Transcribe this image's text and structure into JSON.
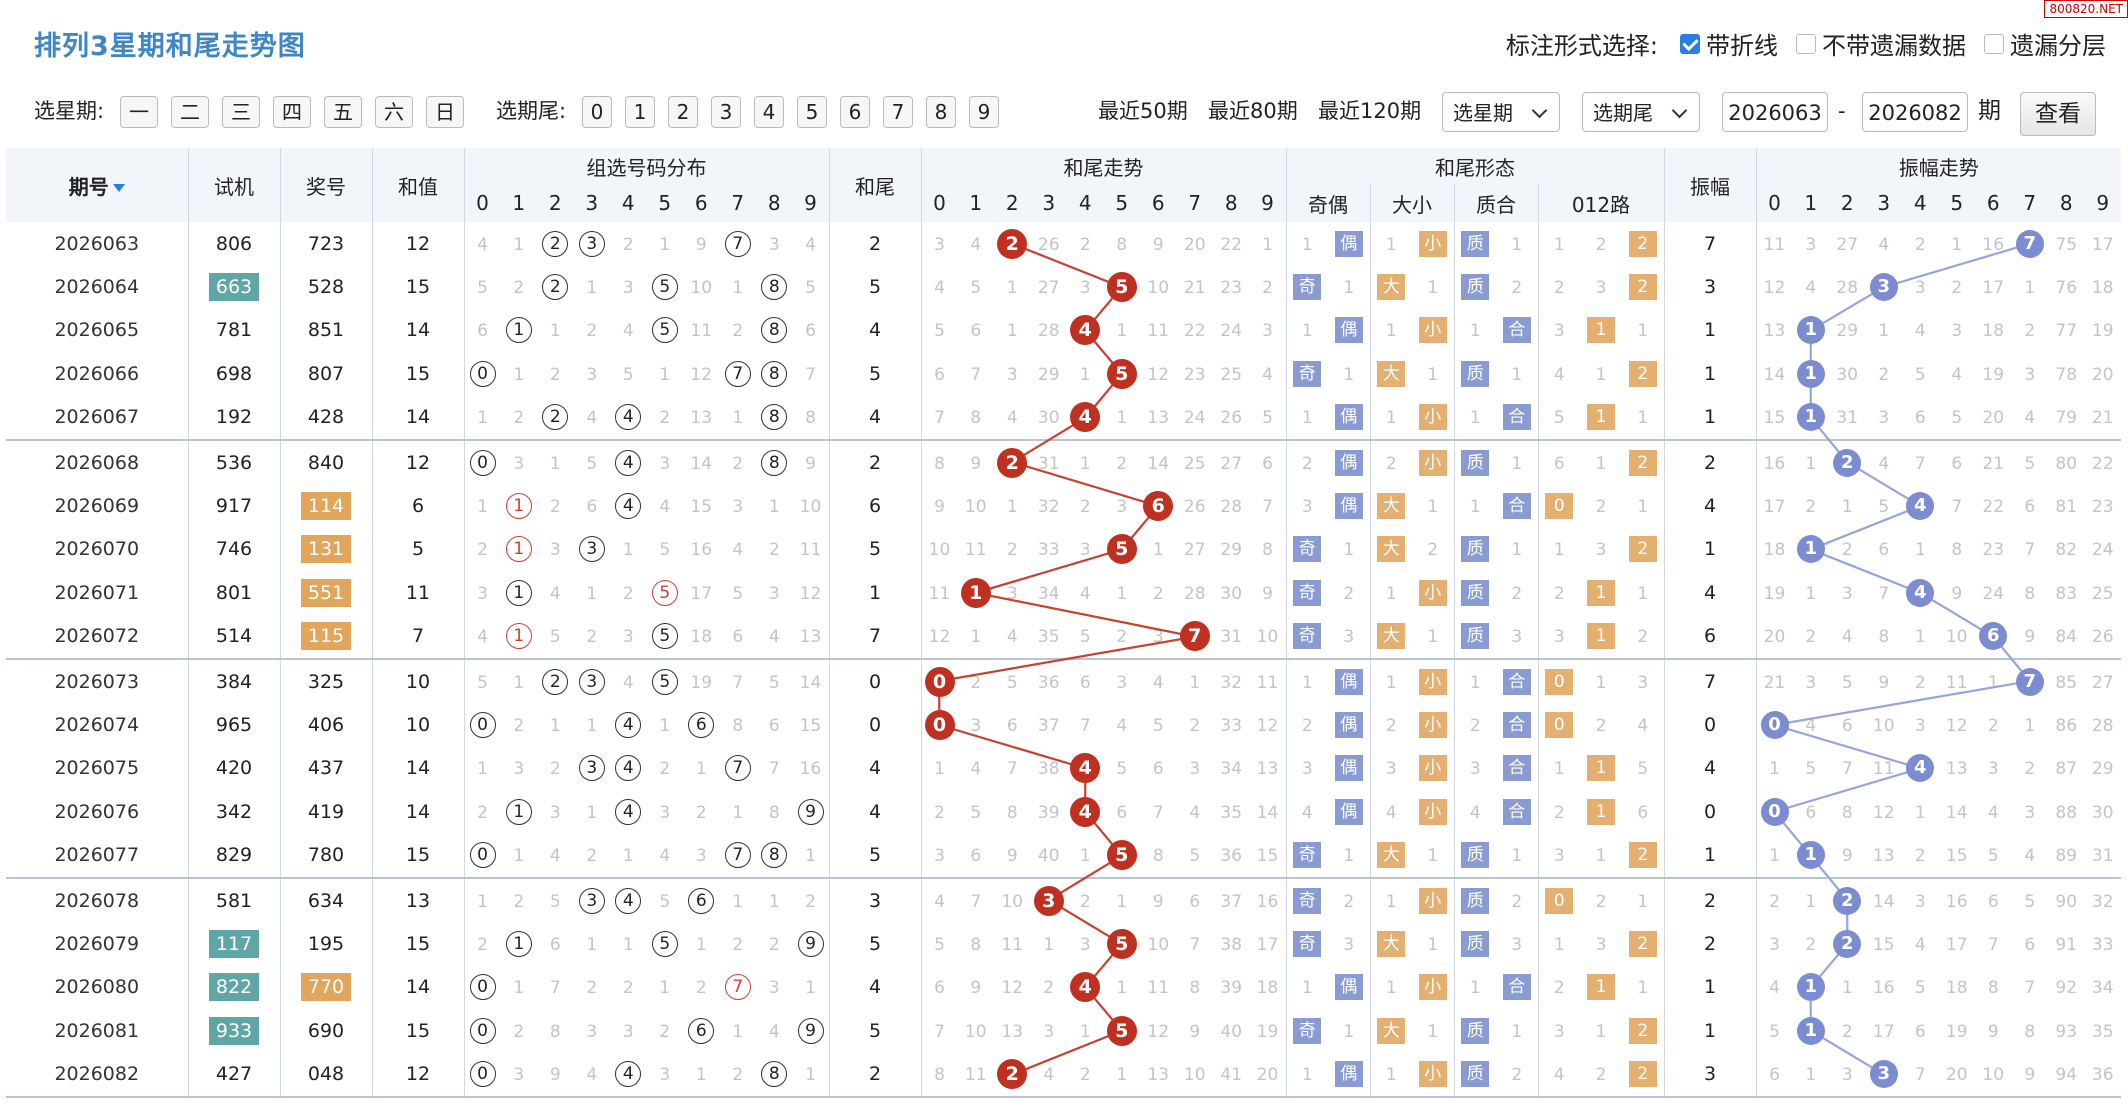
{
  "title": "排列3星期和尾走势图",
  "badge": "800820.NET",
  "options": {
    "label": "标注形式选择:",
    "items": [
      {
        "label": "带折线",
        "checked": true
      },
      {
        "label": "不带遗漏数据",
        "checked": false
      },
      {
        "label": "遗漏分层",
        "checked": false
      }
    ]
  },
  "toolbar": {
    "week_label": "选星期:",
    "weekdays": [
      "一",
      "二",
      "三",
      "四",
      "五",
      "六",
      "日"
    ],
    "tail_label": "选期尾:",
    "tails": [
      "0",
      "1",
      "2",
      "3",
      "4",
      "5",
      "6",
      "7",
      "8",
      "9"
    ],
    "recent": [
      "最近50期",
      "最近80期",
      "最近120期"
    ],
    "select_week": "选星期",
    "select_tail": "选期尾",
    "from": "2026063",
    "dash": "-",
    "to": "2026082",
    "period": "期",
    "query": "查看"
  },
  "headers": {
    "issue": "期号",
    "test": "试机",
    "prize": "奖号",
    "sum": "和值",
    "group": "组选号码分布",
    "tail": "和尾",
    "tail_trend": "和尾走势",
    "form": "和尾形态",
    "form_sub": [
      "奇偶",
      "大小",
      "质合",
      "012路"
    ],
    "amp": "振幅",
    "amp_trend": "振幅走势",
    "digits": [
      "0",
      "1",
      "2",
      "3",
      "4",
      "5",
      "6",
      "7",
      "8",
      "9"
    ]
  },
  "rows": [
    {
      "issue": "2026063",
      "test": "806",
      "prize": "723",
      "sum": "12",
      "tail": "2",
      "amp": "7",
      "testHL": "",
      "prizeHL": "",
      "g": [
        "4",
        "1",
        "②",
        "③",
        "2",
        "1",
        "9",
        "⑦",
        "3",
        "4"
      ],
      "t": [
        "3",
        "4",
        "●",
        "26",
        "2",
        "8",
        "9",
        "20",
        "22",
        "1"
      ],
      "oe": [
        "1",
        "偶"
      ],
      "bs": [
        "1",
        "小"
      ],
      "pc": [
        "质",
        "1"
      ],
      "r": [
        "1",
        "2",
        "2"
      ],
      "rh": 2,
      "a": [
        "11",
        "3",
        "27",
        "4",
        "2",
        "1",
        "16",
        "●",
        "75",
        "17"
      ]
    },
    {
      "issue": "2026064",
      "test": "663",
      "prize": "528",
      "sum": "15",
      "tail": "5",
      "amp": "3",
      "testHL": "teal",
      "prizeHL": "",
      "g": [
        "5",
        "2",
        "②",
        "1",
        "3",
        "⑤",
        "10",
        "1",
        "⑧",
        "5"
      ],
      "t": [
        "4",
        "5",
        "1",
        "27",
        "3",
        "●",
        "10",
        "21",
        "23",
        "2"
      ],
      "oe": [
        "奇",
        "1"
      ],
      "bs": [
        "大",
        "1"
      ],
      "pc": [
        "质",
        "2"
      ],
      "r": [
        "2",
        "3",
        "2"
      ],
      "rh": 2,
      "a": [
        "12",
        "4",
        "28",
        "●",
        "3",
        "2",
        "17",
        "1",
        "76",
        "18"
      ]
    },
    {
      "issue": "2026065",
      "test": "781",
      "prize": "851",
      "sum": "14",
      "tail": "4",
      "amp": "1",
      "testHL": "",
      "prizeHL": "",
      "g": [
        "6",
        "①",
        "1",
        "2",
        "4",
        "⑤",
        "11",
        "2",
        "⑧",
        "6"
      ],
      "t": [
        "5",
        "6",
        "1",
        "28",
        "●",
        "1",
        "11",
        "22",
        "24",
        "3"
      ],
      "oe": [
        "1",
        "偶"
      ],
      "bs": [
        "1",
        "小"
      ],
      "pc": [
        "1",
        "合"
      ],
      "r": [
        "3",
        "1",
        "1"
      ],
      "rh": 1,
      "a": [
        "13",
        "●",
        "29",
        "1",
        "4",
        "3",
        "18",
        "2",
        "77",
        "19"
      ]
    },
    {
      "issue": "2026066",
      "test": "698",
      "prize": "807",
      "sum": "15",
      "tail": "5",
      "amp": "1",
      "testHL": "",
      "prizeHL": "",
      "g": [
        "⓪",
        "1",
        "2",
        "3",
        "5",
        "1",
        "12",
        "⑦",
        "⑧",
        "7"
      ],
      "t": [
        "6",
        "7",
        "3",
        "29",
        "1",
        "●",
        "12",
        "23",
        "25",
        "4"
      ],
      "oe": [
        "奇",
        "1"
      ],
      "bs": [
        "大",
        "1"
      ],
      "pc": [
        "质",
        "1"
      ],
      "r": [
        "4",
        "1",
        "2"
      ],
      "rh": 2,
      "a": [
        "14",
        "●",
        "30",
        "2",
        "5",
        "4",
        "19",
        "3",
        "78",
        "20"
      ]
    },
    {
      "issue": "2026067",
      "test": "192",
      "prize": "428",
      "sum": "14",
      "tail": "4",
      "amp": "1",
      "testHL": "",
      "prizeHL": "",
      "g": [
        "1",
        "2",
        "②",
        "4",
        "④",
        "2",
        "13",
        "1",
        "⑧",
        "8"
      ],
      "t": [
        "7",
        "8",
        "4",
        "30",
        "●",
        "1",
        "13",
        "24",
        "26",
        "5"
      ],
      "oe": [
        "1",
        "偶"
      ],
      "bs": [
        "1",
        "小"
      ],
      "pc": [
        "1",
        "合"
      ],
      "r": [
        "5",
        "1",
        "1"
      ],
      "rh": 1,
      "a": [
        "15",
        "●",
        "31",
        "3",
        "6",
        "5",
        "20",
        "4",
        "79",
        "21"
      ],
      "end": true
    },
    {
      "issue": "2026068",
      "test": "536",
      "prize": "840",
      "sum": "12",
      "tail": "2",
      "amp": "2",
      "testHL": "",
      "prizeHL": "",
      "g": [
        "⓪",
        "3",
        "1",
        "5",
        "④",
        "3",
        "14",
        "2",
        "⑧",
        "9"
      ],
      "t": [
        "8",
        "9",
        "●",
        "31",
        "1",
        "2",
        "14",
        "25",
        "27",
        "6"
      ],
      "oe": [
        "2",
        "偶"
      ],
      "bs": [
        "2",
        "小"
      ],
      "pc": [
        "质",
        "1"
      ],
      "r": [
        "6",
        "1",
        "2"
      ],
      "rh": 2,
      "a": [
        "16",
        "1",
        "●",
        "4",
        "7",
        "6",
        "21",
        "5",
        "80",
        "22"
      ]
    },
    {
      "issue": "2026069",
      "test": "917",
      "prize": "114",
      "sum": "6",
      "tail": "6",
      "amp": "4",
      "testHL": "",
      "prizeHL": "gold",
      "g": [
        "1",
        "Ⓡ1",
        "2",
        "6",
        "④",
        "4",
        "15",
        "3",
        "1",
        "10"
      ],
      "t": [
        "9",
        "10",
        "1",
        "32",
        "2",
        "3",
        "●",
        "26",
        "28",
        "7"
      ],
      "oe": [
        "3",
        "偶"
      ],
      "bs": [
        "大",
        "1"
      ],
      "pc": [
        "1",
        "合"
      ],
      "r": [
        "0",
        "2",
        "1"
      ],
      "rh": 0,
      "a": [
        "17",
        "2",
        "1",
        "5",
        "●",
        "7",
        "22",
        "6",
        "81",
        "23"
      ]
    },
    {
      "issue": "2026070",
      "test": "746",
      "prize": "131",
      "sum": "5",
      "tail": "5",
      "amp": "1",
      "testHL": "",
      "prizeHL": "gold",
      "g": [
        "2",
        "Ⓡ1",
        "3",
        "③",
        "1",
        "5",
        "16",
        "4",
        "2",
        "11"
      ],
      "t": [
        "10",
        "11",
        "2",
        "33",
        "3",
        "●",
        "1",
        "27",
        "29",
        "8"
      ],
      "oe": [
        "奇",
        "1"
      ],
      "bs": [
        "大",
        "2"
      ],
      "pc": [
        "质",
        "1"
      ],
      "r": [
        "1",
        "3",
        "2"
      ],
      "rh": 2,
      "a": [
        "18",
        "●",
        "2",
        "6",
        "1",
        "8",
        "23",
        "7",
        "82",
        "24"
      ]
    },
    {
      "issue": "2026071",
      "test": "801",
      "prize": "551",
      "sum": "11",
      "tail": "1",
      "amp": "4",
      "testHL": "",
      "prizeHL": "gold",
      "g": [
        "3",
        "①",
        "4",
        "1",
        "2",
        "Ⓡ5",
        "17",
        "5",
        "3",
        "12"
      ],
      "t": [
        "11",
        "●",
        "3",
        "34",
        "4",
        "1",
        "2",
        "28",
        "30",
        "9"
      ],
      "oe": [
        "奇",
        "2"
      ],
      "bs": [
        "1",
        "小"
      ],
      "pc": [
        "质",
        "2"
      ],
      "r": [
        "2",
        "1",
        "1"
      ],
      "rh": 1,
      "a": [
        "19",
        "1",
        "3",
        "7",
        "●",
        "9",
        "24",
        "8",
        "83",
        "25"
      ]
    },
    {
      "issue": "2026072",
      "test": "514",
      "prize": "115",
      "sum": "7",
      "tail": "7",
      "amp": "6",
      "testHL": "",
      "prizeHL": "gold",
      "g": [
        "4",
        "Ⓡ1",
        "5",
        "2",
        "3",
        "⑤",
        "18",
        "6",
        "4",
        "13"
      ],
      "t": [
        "12",
        "1",
        "4",
        "35",
        "5",
        "2",
        "3",
        "●",
        "31",
        "10"
      ],
      "oe": [
        "奇",
        "3"
      ],
      "bs": [
        "大",
        "1"
      ],
      "pc": [
        "质",
        "3"
      ],
      "r": [
        "3",
        "1",
        "2"
      ],
      "rh": 1,
      "a": [
        "20",
        "2",
        "4",
        "8",
        "1",
        "10",
        "●",
        "9",
        "84",
        "26"
      ],
      "end": true
    },
    {
      "issue": "2026073",
      "test": "384",
      "prize": "325",
      "sum": "10",
      "tail": "0",
      "amp": "7",
      "testHL": "",
      "prizeHL": "",
      "g": [
        "5",
        "1",
        "②",
        "③",
        "4",
        "⑤",
        "19",
        "7",
        "5",
        "14"
      ],
      "t": [
        "●",
        "2",
        "5",
        "36",
        "6",
        "3",
        "4",
        "1",
        "32",
        "11"
      ],
      "oe": [
        "1",
        "偶"
      ],
      "bs": [
        "1",
        "小"
      ],
      "pc": [
        "1",
        "合"
      ],
      "r": [
        "0",
        "1",
        "3"
      ],
      "rh": 0,
      "a": [
        "21",
        "3",
        "5",
        "9",
        "2",
        "11",
        "1",
        "●",
        "85",
        "27"
      ]
    },
    {
      "issue": "2026074",
      "test": "965",
      "prize": "406",
      "sum": "10",
      "tail": "0",
      "amp": "0",
      "testHL": "",
      "prizeHL": "",
      "g": [
        "⓪",
        "2",
        "1",
        "1",
        "④",
        "1",
        "⑥",
        "8",
        "6",
        "15"
      ],
      "t": [
        "●",
        "3",
        "6",
        "37",
        "7",
        "4",
        "5",
        "2",
        "33",
        "12"
      ],
      "oe": [
        "2",
        "偶"
      ],
      "bs": [
        "2",
        "小"
      ],
      "pc": [
        "2",
        "合"
      ],
      "r": [
        "0",
        "2",
        "4"
      ],
      "rh": 0,
      "a": [
        "●",
        "4",
        "6",
        "10",
        "3",
        "12",
        "2",
        "1",
        "86",
        "28"
      ]
    },
    {
      "issue": "2026075",
      "test": "420",
      "prize": "437",
      "sum": "14",
      "tail": "4",
      "amp": "4",
      "testHL": "",
      "prizeHL": "",
      "g": [
        "1",
        "3",
        "2",
        "③",
        "④",
        "2",
        "1",
        "⑦",
        "7",
        "16"
      ],
      "t": [
        "1",
        "4",
        "7",
        "38",
        "●",
        "5",
        "6",
        "3",
        "34",
        "13"
      ],
      "oe": [
        "3",
        "偶"
      ],
      "bs": [
        "3",
        "小"
      ],
      "pc": [
        "3",
        "合"
      ],
      "r": [
        "1",
        "1",
        "5"
      ],
      "rh": 1,
      "a": [
        "1",
        "5",
        "7",
        "11",
        "●",
        "13",
        "3",
        "2",
        "87",
        "29"
      ]
    },
    {
      "issue": "2026076",
      "test": "342",
      "prize": "419",
      "sum": "14",
      "tail": "4",
      "amp": "0",
      "testHL": "",
      "prizeHL": "",
      "g": [
        "2",
        "①",
        "3",
        "1",
        "④",
        "3",
        "2",
        "1",
        "8",
        "⑨"
      ],
      "t": [
        "2",
        "5",
        "8",
        "39",
        "●",
        "6",
        "7",
        "4",
        "35",
        "14"
      ],
      "oe": [
        "4",
        "偶"
      ],
      "bs": [
        "4",
        "小"
      ],
      "pc": [
        "4",
        "合"
      ],
      "r": [
        "2",
        "1",
        "6"
      ],
      "rh": 1,
      "a": [
        "●",
        "6",
        "8",
        "12",
        "1",
        "14",
        "4",
        "3",
        "88",
        "30"
      ]
    },
    {
      "issue": "2026077",
      "test": "829",
      "prize": "780",
      "sum": "15",
      "tail": "5",
      "amp": "1",
      "testHL": "",
      "prizeHL": "",
      "g": [
        "⓪",
        "1",
        "4",
        "2",
        "1",
        "4",
        "3",
        "⑦",
        "⑧",
        "1"
      ],
      "t": [
        "3",
        "6",
        "9",
        "40",
        "1",
        "●",
        "8",
        "5",
        "36",
        "15"
      ],
      "oe": [
        "奇",
        "1"
      ],
      "bs": [
        "大",
        "1"
      ],
      "pc": [
        "质",
        "1"
      ],
      "r": [
        "3",
        "1",
        "2"
      ],
      "rh": 2,
      "a": [
        "1",
        "●",
        "9",
        "13",
        "2",
        "15",
        "5",
        "4",
        "89",
        "31"
      ],
      "end": true
    },
    {
      "issue": "2026078",
      "test": "581",
      "prize": "634",
      "sum": "13",
      "tail": "3",
      "amp": "2",
      "testHL": "",
      "prizeHL": "",
      "g": [
        "1",
        "2",
        "5",
        "③",
        "④",
        "5",
        "⑥",
        "1",
        "1",
        "2"
      ],
      "t": [
        "4",
        "7",
        "10",
        "●",
        "2",
        "1",
        "9",
        "6",
        "37",
        "16"
      ],
      "oe": [
        "奇",
        "2"
      ],
      "bs": [
        "1",
        "小"
      ],
      "pc": [
        "质",
        "2"
      ],
      "r": [
        "0",
        "2",
        "1"
      ],
      "rh": 0,
      "a": [
        "2",
        "1",
        "●",
        "14",
        "3",
        "16",
        "6",
        "5",
        "90",
        "32"
      ]
    },
    {
      "issue": "2026079",
      "test": "117",
      "prize": "195",
      "sum": "15",
      "tail": "5",
      "amp": "2",
      "testHL": "teal",
      "prizeHL": "",
      "g": [
        "2",
        "①",
        "6",
        "1",
        "1",
        "⑤",
        "1",
        "2",
        "2",
        "⑨"
      ],
      "t": [
        "5",
        "8",
        "11",
        "1",
        "3",
        "●",
        "10",
        "7",
        "38",
        "17"
      ],
      "oe": [
        "奇",
        "3"
      ],
      "bs": [
        "大",
        "1"
      ],
      "pc": [
        "质",
        "3"
      ],
      "r": [
        "1",
        "3",
        "2"
      ],
      "rh": 2,
      "a": [
        "3",
        "2",
        "●",
        "15",
        "4",
        "17",
        "7",
        "6",
        "91",
        "33"
      ]
    },
    {
      "issue": "2026080",
      "test": "822",
      "prize": "770",
      "sum": "14",
      "tail": "4",
      "amp": "1",
      "testHL": "teal",
      "prizeHL": "gold",
      "g": [
        "⓪",
        "1",
        "7",
        "2",
        "2",
        "1",
        "2",
        "Ⓡ7",
        "3",
        "1"
      ],
      "t": [
        "6",
        "9",
        "12",
        "2",
        "●",
        "1",
        "11",
        "8",
        "39",
        "18"
      ],
      "oe": [
        "1",
        "偶"
      ],
      "bs": [
        "1",
        "小"
      ],
      "pc": [
        "1",
        "合"
      ],
      "r": [
        "2",
        "1",
        "1"
      ],
      "rh": 1,
      "a": [
        "4",
        "●",
        "1",
        "16",
        "5",
        "18",
        "8",
        "7",
        "92",
        "34"
      ]
    },
    {
      "issue": "2026081",
      "test": "933",
      "prize": "690",
      "sum": "15",
      "tail": "5",
      "amp": "1",
      "testHL": "teal",
      "prizeHL": "",
      "g": [
        "⓪",
        "2",
        "8",
        "3",
        "3",
        "2",
        "⑥",
        "1",
        "4",
        "⑨"
      ],
      "t": [
        "7",
        "10",
        "13",
        "3",
        "1",
        "●",
        "12",
        "9",
        "40",
        "19"
      ],
      "oe": [
        "奇",
        "1"
      ],
      "bs": [
        "大",
        "1"
      ],
      "pc": [
        "质",
        "1"
      ],
      "r": [
        "3",
        "1",
        "2"
      ],
      "rh": 2,
      "a": [
        "5",
        "●",
        "2",
        "17",
        "6",
        "19",
        "9",
        "8",
        "93",
        "35"
      ]
    },
    {
      "issue": "2026082",
      "test": "427",
      "prize": "048",
      "sum": "12",
      "tail": "2",
      "amp": "3",
      "testHL": "",
      "prizeHL": "",
      "g": [
        "⓪",
        "3",
        "9",
        "4",
        "④",
        "3",
        "1",
        "2",
        "⑧",
        "1"
      ],
      "t": [
        "8",
        "11",
        "●",
        "4",
        "2",
        "1",
        "13",
        "10",
        "41",
        "20"
      ],
      "oe": [
        "1",
        "偶"
      ],
      "bs": [
        "1",
        "小"
      ],
      "pc": [
        "质",
        "2"
      ],
      "r": [
        "4",
        "2",
        "2"
      ],
      "rh": 2,
      "a": [
        "6",
        "1",
        "3",
        "●",
        "7",
        "20",
        "10",
        "9",
        "94",
        "36"
      ],
      "end": true
    }
  ],
  "colors": {
    "accent": "#3f86c6",
    "trend_ball": "#c03020",
    "amp_ball": "#7c8cd0",
    "teal": "#5fa7a7",
    "gold": "#e2a55c"
  }
}
